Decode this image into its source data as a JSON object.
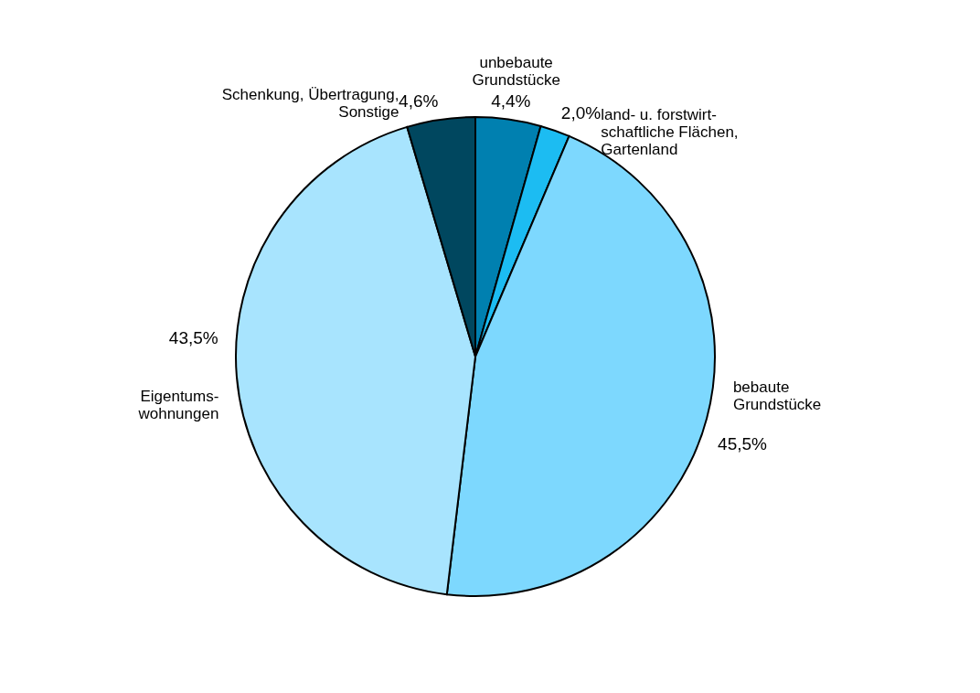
{
  "chart_data": {
    "type": "pie",
    "categories": [
      "unbebaute\nGrundstücke",
      "land- u. forstwirt-\nschaftliche Flächen,\nGartenland",
      "bebaute\nGrundstücke",
      "Eigentums-\nwohnungen",
      "Schenkung, Übertragung,\nSonstige"
    ],
    "values": [
      4.4,
      2.0,
      45.5,
      43.5,
      4.6
    ],
    "colors": [
      "#0080b0",
      "#1cbcf2",
      "#7dd8fe",
      "#a8e4fe",
      "#00475f"
    ],
    "value_labels": [
      "4,4%",
      "2,0%",
      "45,5%",
      "43,5%",
      "4,6%"
    ],
    "legend": false
  }
}
